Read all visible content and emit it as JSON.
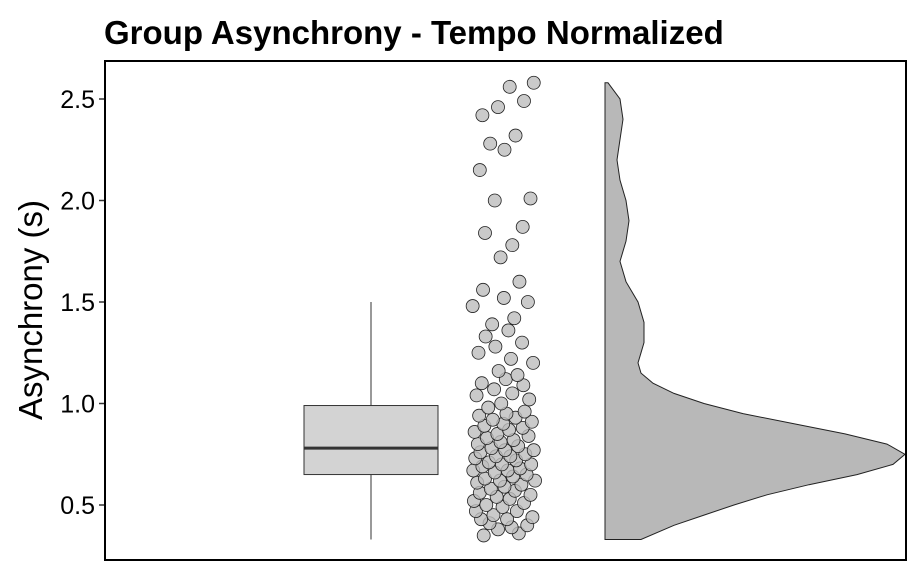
{
  "chart_data": {
    "type": "raincloud",
    "title": "Group Asynchrony - Tempo Normalized",
    "xlabel": "",
    "ylabel": "Asynchrony (s)",
    "ylim": [
      0.25,
      2.65
    ],
    "yticks": [
      0.5,
      1.0,
      1.5,
      2.0,
      2.5
    ],
    "ytick_labels": [
      "0.5",
      "1.0",
      "1.5",
      "2.0",
      "2.5"
    ],
    "grid": false,
    "colors": {
      "box_fill": "#d3d3d3",
      "point_fill": "#bdbdbd",
      "density_fill": "#b8b8b8",
      "stroke": "#000000"
    },
    "boxplot": {
      "min": 0.33,
      "q1": 0.65,
      "median": 0.78,
      "q3": 0.99,
      "max": 1.5
    },
    "density": {
      "y": [
        0.33,
        0.4,
        0.45,
        0.5,
        0.55,
        0.6,
        0.65,
        0.7,
        0.75,
        0.8,
        0.85,
        0.9,
        0.95,
        1.0,
        1.05,
        1.1,
        1.15,
        1.2,
        1.25,
        1.3,
        1.4,
        1.5,
        1.6,
        1.7,
        1.8,
        1.9,
        2.0,
        2.1,
        2.2,
        2.3,
        2.4,
        2.5,
        2.58
      ],
      "density": [
        0.12,
        0.23,
        0.33,
        0.43,
        0.54,
        0.68,
        0.84,
        0.96,
        1.0,
        0.94,
        0.8,
        0.63,
        0.46,
        0.33,
        0.23,
        0.16,
        0.12,
        0.11,
        0.12,
        0.13,
        0.13,
        0.11,
        0.07,
        0.05,
        0.07,
        0.08,
        0.07,
        0.05,
        0.04,
        0.05,
        0.06,
        0.05,
        0.01
      ]
    },
    "points": [
      {
        "jitter": 0.18,
        "y": 0.35
      },
      {
        "jitter": 0.72,
        "y": 0.36
      },
      {
        "jitter": 0.4,
        "y": 0.38
      },
      {
        "jitter": 0.61,
        "y": 0.39
      },
      {
        "jitter": 0.85,
        "y": 0.4
      },
      {
        "jitter": 0.27,
        "y": 0.41
      },
      {
        "jitter": 0.14,
        "y": 0.43
      },
      {
        "jitter": 0.54,
        "y": 0.43
      },
      {
        "jitter": 0.93,
        "y": 0.44
      },
      {
        "jitter": 0.33,
        "y": 0.45
      },
      {
        "jitter": 0.06,
        "y": 0.47
      },
      {
        "jitter": 0.69,
        "y": 0.47
      },
      {
        "jitter": 0.47,
        "y": 0.49
      },
      {
        "jitter": 0.22,
        "y": 0.5
      },
      {
        "jitter": 0.8,
        "y": 0.51
      },
      {
        "jitter": 0.03,
        "y": 0.52
      },
      {
        "jitter": 0.58,
        "y": 0.53
      },
      {
        "jitter": 0.38,
        "y": 0.54
      },
      {
        "jitter": 0.9,
        "y": 0.55
      },
      {
        "jitter": 0.12,
        "y": 0.56
      },
      {
        "jitter": 0.66,
        "y": 0.57
      },
      {
        "jitter": 0.29,
        "y": 0.58
      },
      {
        "jitter": 0.5,
        "y": 0.59
      },
      {
        "jitter": 0.76,
        "y": 0.6
      },
      {
        "jitter": 0.08,
        "y": 0.61
      },
      {
        "jitter": 0.97,
        "y": 0.62
      },
      {
        "jitter": 0.43,
        "y": 0.62
      },
      {
        "jitter": 0.2,
        "y": 0.63
      },
      {
        "jitter": 0.63,
        "y": 0.64
      },
      {
        "jitter": 0.84,
        "y": 0.65
      },
      {
        "jitter": 0.35,
        "y": 0.66
      },
      {
        "jitter": 0.02,
        "y": 0.67
      },
      {
        "jitter": 0.55,
        "y": 0.67
      },
      {
        "jitter": 0.74,
        "y": 0.68
      },
      {
        "jitter": 0.16,
        "y": 0.69
      },
      {
        "jitter": 0.46,
        "y": 0.7
      },
      {
        "jitter": 0.91,
        "y": 0.7
      },
      {
        "jitter": 0.26,
        "y": 0.71
      },
      {
        "jitter": 0.68,
        "y": 0.72
      },
      {
        "jitter": 0.05,
        "y": 0.73
      },
      {
        "jitter": 0.59,
        "y": 0.74
      },
      {
        "jitter": 0.37,
        "y": 0.74
      },
      {
        "jitter": 0.82,
        "y": 0.75
      },
      {
        "jitter": 0.13,
        "y": 0.76
      },
      {
        "jitter": 0.51,
        "y": 0.77
      },
      {
        "jitter": 0.95,
        "y": 0.77
      },
      {
        "jitter": 0.3,
        "y": 0.78
      },
      {
        "jitter": 0.71,
        "y": 0.79
      },
      {
        "jitter": 0.09,
        "y": 0.8
      },
      {
        "jitter": 0.44,
        "y": 0.81
      },
      {
        "jitter": 0.64,
        "y": 0.82
      },
      {
        "jitter": 0.23,
        "y": 0.83
      },
      {
        "jitter": 0.87,
        "y": 0.84
      },
      {
        "jitter": 0.39,
        "y": 0.85
      },
      {
        "jitter": 0.04,
        "y": 0.86
      },
      {
        "jitter": 0.57,
        "y": 0.87
      },
      {
        "jitter": 0.78,
        "y": 0.88
      },
      {
        "jitter": 0.19,
        "y": 0.89
      },
      {
        "jitter": 0.48,
        "y": 0.9
      },
      {
        "jitter": 0.92,
        "y": 0.91
      },
      {
        "jitter": 0.32,
        "y": 0.92
      },
      {
        "jitter": 0.67,
        "y": 0.93
      },
      {
        "jitter": 0.11,
        "y": 0.94
      },
      {
        "jitter": 0.53,
        "y": 0.95
      },
      {
        "jitter": 0.81,
        "y": 0.96
      },
      {
        "jitter": 0.25,
        "y": 0.98
      },
      {
        "jitter": 0.45,
        "y": 1.0
      },
      {
        "jitter": 0.88,
        "y": 1.02
      },
      {
        "jitter": 0.07,
        "y": 1.04
      },
      {
        "jitter": 0.62,
        "y": 1.05
      },
      {
        "jitter": 0.34,
        "y": 1.07
      },
      {
        "jitter": 0.79,
        "y": 1.09
      },
      {
        "jitter": 0.15,
        "y": 1.1
      },
      {
        "jitter": 0.52,
        "y": 1.12
      },
      {
        "jitter": 0.7,
        "y": 1.14
      },
      {
        "jitter": 0.41,
        "y": 1.16
      },
      {
        "jitter": 0.94,
        "y": 1.2
      },
      {
        "jitter": 0.6,
        "y": 1.22
      },
      {
        "jitter": 0.1,
        "y": 1.25
      },
      {
        "jitter": 0.36,
        "y": 1.28
      },
      {
        "jitter": 0.77,
        "y": 1.3
      },
      {
        "jitter": 0.21,
        "y": 1.33
      },
      {
        "jitter": 0.56,
        "y": 1.36
      },
      {
        "jitter": 0.31,
        "y": 1.39
      },
      {
        "jitter": 0.65,
        "y": 1.42
      },
      {
        "jitter": 0.01,
        "y": 1.48
      },
      {
        "jitter": 0.86,
        "y": 1.5
      },
      {
        "jitter": 0.49,
        "y": 1.52
      },
      {
        "jitter": 0.17,
        "y": 1.56
      },
      {
        "jitter": 0.73,
        "y": 1.6
      },
      {
        "jitter": 0.44,
        "y": 1.72
      },
      {
        "jitter": 0.62,
        "y": 1.78
      },
      {
        "jitter": 0.2,
        "y": 1.84
      },
      {
        "jitter": 0.78,
        "y": 1.87
      },
      {
        "jitter": 0.35,
        "y": 2.0
      },
      {
        "jitter": 0.9,
        "y": 2.01
      },
      {
        "jitter": 0.12,
        "y": 2.15
      },
      {
        "jitter": 0.5,
        "y": 2.25
      },
      {
        "jitter": 0.28,
        "y": 2.28
      },
      {
        "jitter": 0.67,
        "y": 2.32
      },
      {
        "jitter": 0.16,
        "y": 2.42
      },
      {
        "jitter": 0.4,
        "y": 2.46
      },
      {
        "jitter": 0.8,
        "y": 2.49
      },
      {
        "jitter": 0.58,
        "y": 2.56
      },
      {
        "jitter": 0.95,
        "y": 2.58
      }
    ]
  }
}
